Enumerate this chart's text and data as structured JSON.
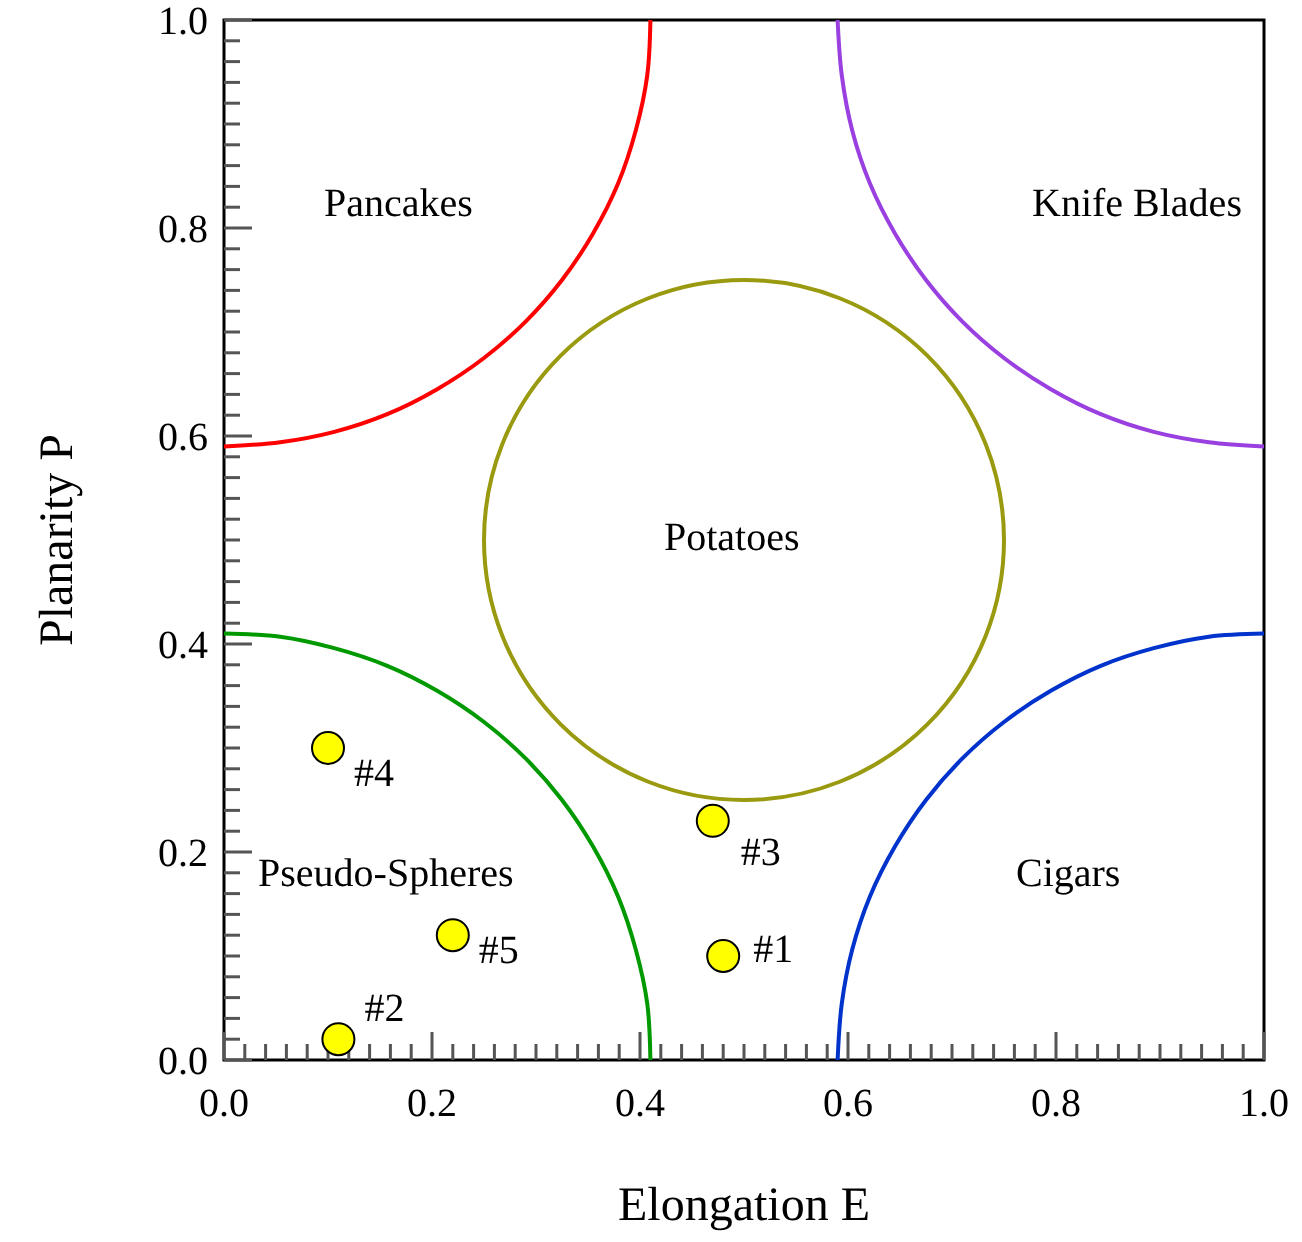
{
  "chart_data": {
    "type": "scatter",
    "xlabel": "Elongation E",
    "ylabel": "Planarity P",
    "xlim": [
      0,
      1
    ],
    "ylim": [
      0,
      1
    ],
    "xticks": [
      {
        "value": 0,
        "label": "0.0"
      },
      {
        "value": 0.02,
        "label": null
      },
      {
        "value": 0.04,
        "label": null
      },
      {
        "value": 0.06,
        "label": null
      },
      {
        "value": 0.08,
        "label": null
      },
      {
        "value": 0.1,
        "label": null
      },
      {
        "value": 0.12,
        "label": null
      },
      {
        "value": 0.14,
        "label": null
      },
      {
        "value": 0.16,
        "label": null
      },
      {
        "value": 0.18,
        "label": null
      },
      {
        "value": 0.2,
        "label": "0.2"
      },
      {
        "value": 0.22,
        "label": null
      },
      {
        "value": 0.24,
        "label": null
      },
      {
        "value": 0.26,
        "label": null
      },
      {
        "value": 0.28,
        "label": null
      },
      {
        "value": 0.3,
        "label": null
      },
      {
        "value": 0.32,
        "label": null
      },
      {
        "value": 0.34,
        "label": null
      },
      {
        "value": 0.36,
        "label": null
      },
      {
        "value": 0.38,
        "label": null
      },
      {
        "value": 0.4,
        "label": "0.4"
      },
      {
        "value": 0.42,
        "label": null
      },
      {
        "value": 0.44,
        "label": null
      },
      {
        "value": 0.46,
        "label": null
      },
      {
        "value": 0.48,
        "label": null
      },
      {
        "value": 0.5,
        "label": null
      },
      {
        "value": 0.52,
        "label": null
      },
      {
        "value": 0.54,
        "label": null
      },
      {
        "value": 0.56,
        "label": null
      },
      {
        "value": 0.58,
        "label": null
      },
      {
        "value": 0.6,
        "label": "0.6"
      },
      {
        "value": 0.62,
        "label": null
      },
      {
        "value": 0.64,
        "label": null
      },
      {
        "value": 0.66,
        "label": null
      },
      {
        "value": 0.68,
        "label": null
      },
      {
        "value": 0.7,
        "label": null
      },
      {
        "value": 0.72,
        "label": null
      },
      {
        "value": 0.74,
        "label": null
      },
      {
        "value": 0.76,
        "label": null
      },
      {
        "value": 0.78,
        "label": null
      },
      {
        "value": 0.8,
        "label": "0.8"
      },
      {
        "value": 0.82,
        "label": null
      },
      {
        "value": 0.84,
        "label": null
      },
      {
        "value": 0.86,
        "label": null
      },
      {
        "value": 0.88,
        "label": null
      },
      {
        "value": 0.9,
        "label": null
      },
      {
        "value": 0.92,
        "label": null
      },
      {
        "value": 0.94,
        "label": null
      },
      {
        "value": 0.96,
        "label": null
      },
      {
        "value": 0.98,
        "label": null
      },
      {
        "value": 1,
        "label": "1.0"
      }
    ],
    "yticks": [
      {
        "value": 0,
        "label": "0.0"
      },
      {
        "value": 0.02,
        "label": null
      },
      {
        "value": 0.04,
        "label": null
      },
      {
        "value": 0.06,
        "label": null
      },
      {
        "value": 0.08,
        "label": null
      },
      {
        "value": 0.1,
        "label": null
      },
      {
        "value": 0.12,
        "label": null
      },
      {
        "value": 0.14,
        "label": null
      },
      {
        "value": 0.16,
        "label": null
      },
      {
        "value": 0.18,
        "label": null
      },
      {
        "value": 0.2,
        "label": "0.2"
      },
      {
        "value": 0.22,
        "label": null
      },
      {
        "value": 0.24,
        "label": null
      },
      {
        "value": 0.26,
        "label": null
      },
      {
        "value": 0.28,
        "label": null
      },
      {
        "value": 0.3,
        "label": null
      },
      {
        "value": 0.32,
        "label": null
      },
      {
        "value": 0.34,
        "label": null
      },
      {
        "value": 0.36,
        "label": null
      },
      {
        "value": 0.38,
        "label": null
      },
      {
        "value": 0.4,
        "label": "0.4"
      },
      {
        "value": 0.42,
        "label": null
      },
      {
        "value": 0.44,
        "label": null
      },
      {
        "value": 0.46,
        "label": null
      },
      {
        "value": 0.48,
        "label": null
      },
      {
        "value": 0.5,
        "label": null
      },
      {
        "value": 0.52,
        "label": null
      },
      {
        "value": 0.54,
        "label": null
      },
      {
        "value": 0.56,
        "label": null
      },
      {
        "value": 0.58,
        "label": null
      },
      {
        "value": 0.6,
        "label": "0.6"
      },
      {
        "value": 0.62,
        "label": null
      },
      {
        "value": 0.64,
        "label": null
      },
      {
        "value": 0.66,
        "label": null
      },
      {
        "value": 0.68,
        "label": null
      },
      {
        "value": 0.7,
        "label": null
      },
      {
        "value": 0.72,
        "label": null
      },
      {
        "value": 0.74,
        "label": null
      },
      {
        "value": 0.76,
        "label": null
      },
      {
        "value": 0.78,
        "label": null
      },
      {
        "value": 0.8,
        "label": "0.8"
      },
      {
        "value": 0.82,
        "label": null
      },
      {
        "value": 0.84,
        "label": null
      },
      {
        "value": 0.86,
        "label": null
      },
      {
        "value": 0.88,
        "label": null
      },
      {
        "value": 0.9,
        "label": null
      },
      {
        "value": 0.92,
        "label": null
      },
      {
        "value": 0.94,
        "label": null
      },
      {
        "value": 0.96,
        "label": null
      },
      {
        "value": 0.98,
        "label": null
      },
      {
        "value": 1,
        "label": "1.0"
      }
    ],
    "grid": false,
    "series": [
      {
        "type": "line",
        "color": "#ff0000",
        "x": [
          0.41,
          0.407,
          0.396,
          0.379,
          0.355,
          0.325,
          0.29,
          0.25,
          0.205,
          0.157,
          0.106,
          0.054,
          0
        ],
        "values": [
          1,
          0.947,
          0.894,
          0.843,
          0.795,
          0.75,
          0.71,
          0.675,
          0.645,
          0.621,
          0.604,
          0.594,
          0.59
        ]
      },
      {
        "type": "line",
        "color": "#9a40e0",
        "x": [
          0.59,
          0.594,
          0.604,
          0.621,
          0.645,
          0.675,
          0.71,
          0.75,
          0.795,
          0.843,
          0.894,
          0.947,
          1
        ],
        "values": [
          1,
          0.947,
          0.894,
          0.843,
          0.795,
          0.75,
          0.71,
          0.675,
          0.645,
          0.621,
          0.604,
          0.594,
          0.59
        ]
      },
      {
        "type": "line",
        "color": "#009a00",
        "x": [
          0.41,
          0.407,
          0.396,
          0.379,
          0.355,
          0.325,
          0.29,
          0.25,
          0.205,
          0.157,
          0.106,
          0.054,
          0
        ],
        "values": [
          0,
          0.054,
          0.106,
          0.157,
          0.205,
          0.25,
          0.29,
          0.325,
          0.355,
          0.379,
          0.396,
          0.407,
          0.41
        ]
      },
      {
        "type": "line",
        "color": "#0033cc",
        "x": [
          0.59,
          0.594,
          0.604,
          0.621,
          0.645,
          0.675,
          0.71,
          0.75,
          0.795,
          0.843,
          0.894,
          0.947,
          1
        ],
        "values": [
          0,
          0.054,
          0.106,
          0.157,
          0.205,
          0.25,
          0.29,
          0.325,
          0.355,
          0.379,
          0.396,
          0.407,
          0.41
        ]
      },
      {
        "color": "#ffff00",
        "marker": "circle",
        "x": [
          0.48,
          0.11,
          0.47,
          0.1,
          0.22
        ],
        "values": [
          0.1,
          0.02,
          0.23,
          0.3,
          0.12
        ]
      }
    ],
    "annotations": [
      "Pancakes",
      "Knife Blades",
      "Potatoes",
      "Pseudo-Spheres",
      "Cigars",
      {
        "text": "#1",
        "x": 0.48,
        "y": 0.1
      },
      {
        "text": "#2",
        "x": 0.11,
        "y": 0.02
      },
      {
        "text": "#3",
        "x": 0.47,
        "y": 0.23
      },
      {
        "text": "#4",
        "x": 0.1,
        "y": 0.3
      },
      {
        "text": "#5",
        "x": 0.22,
        "y": 0.12
      }
    ]
  }
}
